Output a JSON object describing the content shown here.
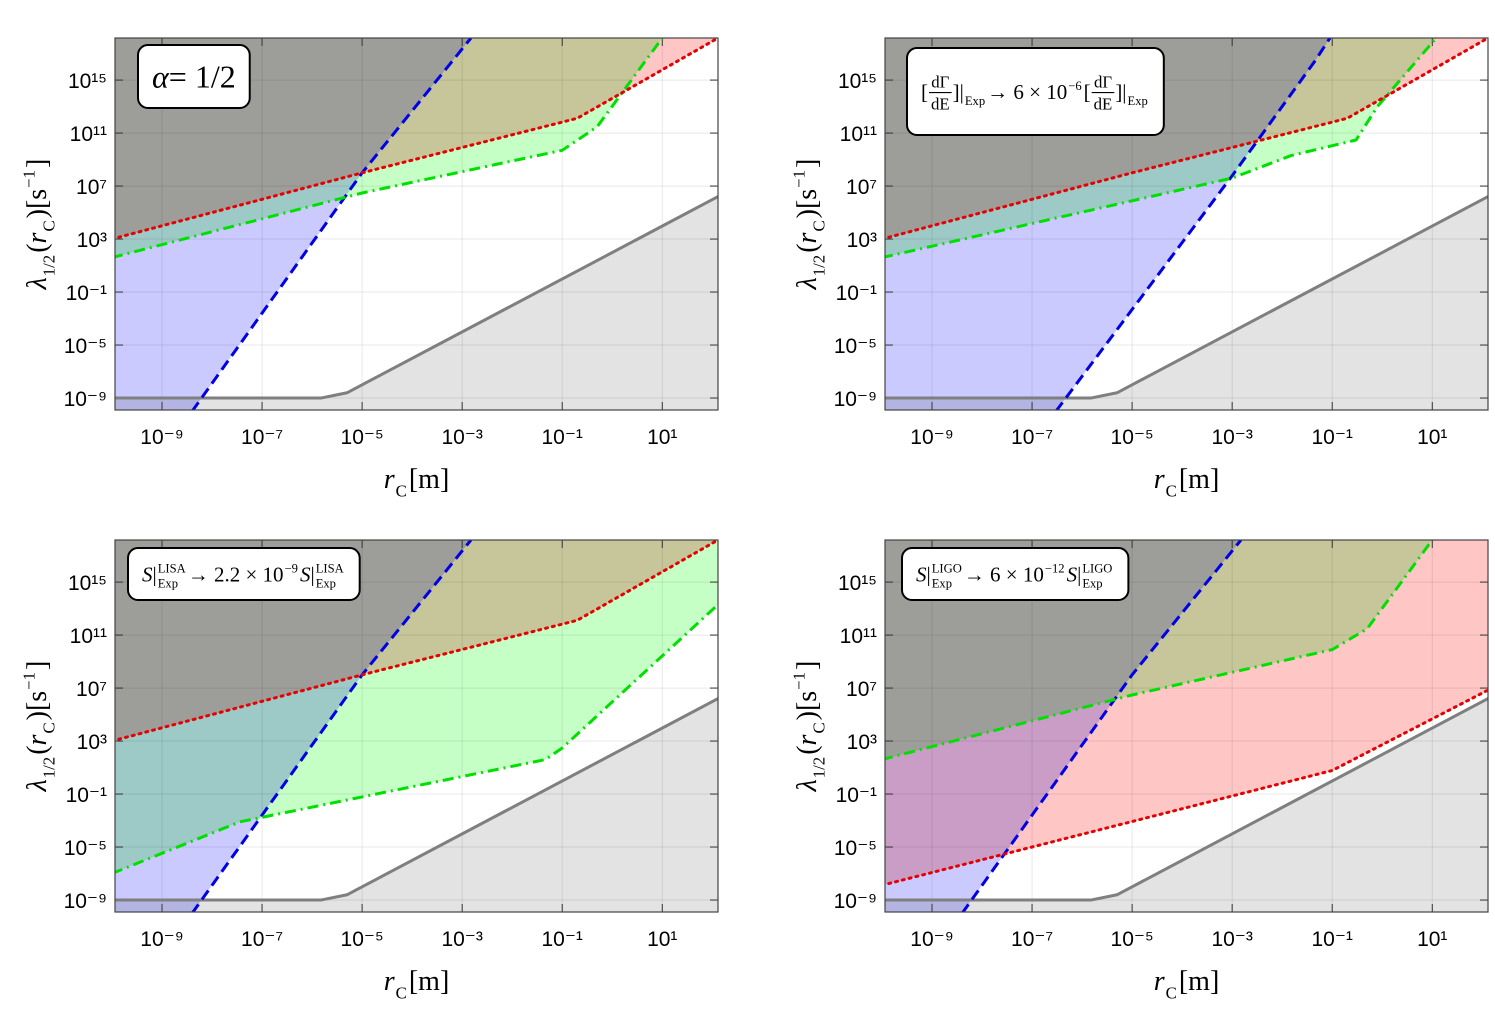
{
  "chart_data": [
    {
      "type": "line",
      "xscale": "log",
      "yscale": "log",
      "grid": true,
      "xlabel": [
        {
          "text": "r",
          "italic": true,
          "sub": "C"
        },
        {
          "text": "[m]"
        }
      ],
      "ylabel": [
        {
          "text": "λ",
          "italic": true,
          "sub": "1/2"
        },
        {
          "text": "("
        },
        {
          "text": "r",
          "italic": true,
          "sub": "C"
        },
        {
          "text": ")[s",
          "sup": "−1"
        },
        {
          "text": "]"
        }
      ],
      "annotation": [
        {
          "text": "α",
          "italic": true
        },
        {
          "text": " = 1/2"
        }
      ],
      "xlim": [
        1.15e-10,
        130
      ],
      "ylim": [
        1.25e-10,
        1.5e+18
      ],
      "xticks": [
        {
          "value": 1e-09,
          "label": "10⁻⁹"
        },
        {
          "value": 1e-07,
          "label": "10⁻⁷"
        },
        {
          "value": 1e-05,
          "label": "10⁻⁵"
        },
        {
          "value": 0.001,
          "label": "10⁻³"
        },
        {
          "value": 0.1,
          "label": "10⁻¹"
        },
        {
          "value": 10,
          "label": "10¹"
        }
      ],
      "yticks": [
        {
          "value": 1e-09,
          "label": "10⁻⁹"
        },
        {
          "value": 1e-05,
          "label": "10⁻⁵"
        },
        {
          "value": 0.1,
          "label": "10⁻¹"
        },
        {
          "value": 1000,
          "label": "10³"
        },
        {
          "value": 10000000.0,
          "label": "10⁷"
        },
        {
          "value": 100000000000.0,
          "label": "10¹¹"
        },
        {
          "value": 1000000000000000.0,
          "label": "10¹⁵"
        }
      ],
      "series": [
        {
          "color": "#7f7f7f",
          "style": "solid",
          "fill": "below",
          "fill_color": "#e3e3e3",
          "x": [
            1e-10,
            1.5e-06,
            5e-06,
            1e-05,
            130
          ],
          "values": [
            1e-09,
            1e-09,
            2.5e-09,
            1e-08,
            1600000.0
          ]
        },
        {
          "color": "#0000e6",
          "style": "dashed",
          "fill": "left",
          "fill_color": "#cacaff",
          "x": [
            4e-09,
            1e-05,
            0.0015
          ],
          "values": [
            1e-10,
            100000000.0,
            1.5e+18
          ]
        },
        {
          "color": "#00e000",
          "style": "dashdot",
          "fill": "above",
          "fill_color": "#c6ffc6",
          "x": [
            1e-10,
            1e-05,
            0.1,
            0.5,
            10
          ],
          "values": [
            40,
            3000000.0,
            5000000000.0,
            300000000000.0,
            1.5e+18
          ]
        },
        {
          "color": "#e60000",
          "style": "dotted",
          "fill": "above",
          "fill_color": "#ffc6c6",
          "x": [
            1e-10,
            1e-05,
            0.2,
            130
          ],
          "values": [
            1000,
            100000000.0,
            1300000000000.0,
            1.5e+18
          ]
        }
      ]
    },
    {
      "type": "line",
      "xscale": "log",
      "yscale": "log",
      "grid": true,
      "xlabel": [
        {
          "text": "r",
          "italic": true,
          "sub": "C"
        },
        {
          "text": "[m]"
        }
      ],
      "ylabel": [
        {
          "text": "λ",
          "italic": true,
          "sub": "1/2"
        },
        {
          "text": "("
        },
        {
          "text": "r",
          "italic": true,
          "sub": "C"
        },
        {
          "text": ")[s",
          "sup": "−1"
        },
        {
          "text": "]"
        }
      ],
      "annotation": [
        {
          "text": "["
        },
        {
          "num": "dΓ",
          "den": "dE"
        },
        {
          "text": "]|",
          "sub": "Exp"
        },
        {
          "text": " → 6 × 10",
          "sup": "−6"
        },
        {
          "text": " ["
        },
        {
          "num": "dΓ",
          "den": "dE"
        },
        {
          "text": "]|",
          "sub": "Exp"
        }
      ],
      "xlim": [
        1.15e-10,
        130
      ],
      "ylim": [
        1.25e-10,
        1.5e+18
      ],
      "xticks": [
        {
          "value": 1e-09,
          "label": "10⁻⁹"
        },
        {
          "value": 1e-07,
          "label": "10⁻⁷"
        },
        {
          "value": 1e-05,
          "label": "10⁻⁵"
        },
        {
          "value": 0.001,
          "label": "10⁻³"
        },
        {
          "value": 0.1,
          "label": "10⁻¹"
        },
        {
          "value": 10,
          "label": "10¹"
        }
      ],
      "yticks": [
        {
          "value": 1e-09,
          "label": "10⁻⁹"
        },
        {
          "value": 1e-05,
          "label": "10⁻⁵"
        },
        {
          "value": 0.1,
          "label": "10⁻¹"
        },
        {
          "value": 1000,
          "label": "10³"
        },
        {
          "value": 10000000.0,
          "label": "10⁷"
        },
        {
          "value": 100000000000.0,
          "label": "10¹¹"
        },
        {
          "value": 1000000000000000.0,
          "label": "10¹⁵"
        }
      ],
      "series": [
        {
          "color": "#7f7f7f",
          "style": "solid",
          "fill": "below",
          "fill_color": "#e3e3e3",
          "x": [
            1e-10,
            1.5e-06,
            5e-06,
            1e-05,
            130
          ],
          "values": [
            1e-09,
            1e-09,
            2.5e-09,
            1e-08,
            1600000.0
          ]
        },
        {
          "color": "#0000e6",
          "style": "dashed",
          "fill": "left",
          "fill_color": "#cacaff",
          "x": [
            3e-07,
            0.001,
            0.046,
            0.09
          ],
          "values": [
            1e-10,
            60000000.0,
            3e+16,
            1.5e+18
          ]
        },
        {
          "color": "#00e000",
          "style": "dashdot",
          "fill": "above",
          "fill_color": "#c6ffc6",
          "x": [
            1e-10,
            0.001,
            0.015,
            0.3,
            0.8,
            12
          ],
          "values": [
            40,
            40000000.0,
            2000000000.0,
            30000000000.0,
            10000000000000.0,
            1.5e+18
          ]
        },
        {
          "color": "#e60000",
          "style": "dotted",
          "fill": "above",
          "fill_color": "#ffc6c6",
          "x": [
            1e-10,
            1e-05,
            0.2,
            130
          ],
          "values": [
            1000,
            100000000.0,
            1300000000000.0,
            1.5e+18
          ]
        }
      ]
    },
    {
      "type": "line",
      "xscale": "log",
      "yscale": "log",
      "grid": true,
      "xlabel": [
        {
          "text": "r",
          "italic": true,
          "sub": "C"
        },
        {
          "text": "[m]"
        }
      ],
      "ylabel": [
        {
          "text": "λ",
          "italic": true,
          "sub": "1/2"
        },
        {
          "text": "("
        },
        {
          "text": "r",
          "italic": true,
          "sub": "C"
        },
        {
          "text": ")[s",
          "sup": "−1"
        },
        {
          "text": "]"
        }
      ],
      "annotation": [
        {
          "text": "S",
          "italic": true
        },
        {
          "text": "|",
          "sub": "Exp",
          "sup": "LISA"
        },
        {
          "text": " → 2.2 × 10",
          "sup": "−9"
        },
        {
          "text": "S",
          "italic": true
        },
        {
          "text": "|",
          "sub": "Exp",
          "sup": "LISA"
        }
      ],
      "xlim": [
        1.15e-10,
        130
      ],
      "ylim": [
        1.25e-10,
        1.5e+18
      ],
      "xticks": [
        {
          "value": 1e-09,
          "label": "10⁻⁹"
        },
        {
          "value": 1e-07,
          "label": "10⁻⁷"
        },
        {
          "value": 1e-05,
          "label": "10⁻⁵"
        },
        {
          "value": 0.001,
          "label": "10⁻³"
        },
        {
          "value": 0.1,
          "label": "10⁻¹"
        },
        {
          "value": 10,
          "label": "10¹"
        }
      ],
      "yticks": [
        {
          "value": 1e-09,
          "label": "10⁻⁹"
        },
        {
          "value": 1e-05,
          "label": "10⁻⁵"
        },
        {
          "value": 0.1,
          "label": "10⁻¹"
        },
        {
          "value": 1000,
          "label": "10³"
        },
        {
          "value": 10000000.0,
          "label": "10⁷"
        },
        {
          "value": 100000000000.0,
          "label": "10¹¹"
        },
        {
          "value": 1000000000000000.0,
          "label": "10¹⁵"
        }
      ],
      "series": [
        {
          "color": "#7f7f7f",
          "style": "solid",
          "fill": "below",
          "fill_color": "#e3e3e3",
          "x": [
            1e-10,
            1.5e-06,
            5e-06,
            1e-05,
            130
          ],
          "values": [
            1e-09,
            1e-09,
            2.5e-09,
            1e-08,
            1600000.0
          ]
        },
        {
          "color": "#0000e6",
          "style": "dashed",
          "fill": "left",
          "fill_color": "#cacaff",
          "x": [
            4e-09,
            1e-05,
            0.0015
          ],
          "values": [
            1e-10,
            100000000.0,
            1.5e+18
          ]
        },
        {
          "color": "#00e000",
          "style": "dashdot",
          "fill": "above",
          "fill_color": "#c6ffc6",
          "x": [
            1e-10,
            3.6e-08,
            0.046,
            0.1,
            130
          ],
          "values": [
            1e-07,
            0.0008,
            40,
            300,
            20000000000000.0
          ]
        },
        {
          "color": "#e60000",
          "style": "dotted",
          "fill": "above",
          "fill_color": "#ffc6c6",
          "x": [
            1e-10,
            1e-05,
            0.2,
            130
          ],
          "values": [
            1000,
            100000000.0,
            1300000000000.0,
            1.5e+18
          ]
        }
      ]
    },
    {
      "type": "line",
      "xscale": "log",
      "yscale": "log",
      "grid": true,
      "xlabel": [
        {
          "text": "r",
          "italic": true,
          "sub": "C"
        },
        {
          "text": "[m]"
        }
      ],
      "ylabel": [
        {
          "text": "λ",
          "italic": true,
          "sub": "1/2"
        },
        {
          "text": "("
        },
        {
          "text": "r",
          "italic": true,
          "sub": "C"
        },
        {
          "text": ")[s",
          "sup": "−1"
        },
        {
          "text": "]"
        }
      ],
      "annotation": [
        {
          "text": "S",
          "italic": true
        },
        {
          "text": "|",
          "sub": "Exp",
          "sup": "LIGO"
        },
        {
          "text": " → 6 × 10",
          "sup": "−12"
        },
        {
          "text": "S",
          "italic": true
        },
        {
          "text": "|",
          "sub": "Exp",
          "sup": "LIGO"
        }
      ],
      "xlim": [
        1.15e-10,
        130
      ],
      "ylim": [
        1.25e-10,
        1.5e+18
      ],
      "xticks": [
        {
          "value": 1e-09,
          "label": "10⁻⁹"
        },
        {
          "value": 1e-07,
          "label": "10⁻⁷"
        },
        {
          "value": 1e-05,
          "label": "10⁻⁵"
        },
        {
          "value": 0.001,
          "label": "10⁻³"
        },
        {
          "value": 0.1,
          "label": "10⁻¹"
        },
        {
          "value": 10,
          "label": "10¹"
        }
      ],
      "yticks": [
        {
          "value": 1e-09,
          "label": "10⁻⁹"
        },
        {
          "value": 1e-05,
          "label": "10⁻⁵"
        },
        {
          "value": 0.1,
          "label": "10⁻¹"
        },
        {
          "value": 1000,
          "label": "10³"
        },
        {
          "value": 10000000.0,
          "label": "10⁷"
        },
        {
          "value": 100000000000.0,
          "label": "10¹¹"
        },
        {
          "value": 1000000000000000.0,
          "label": "10¹⁵"
        }
      ],
      "series": [
        {
          "color": "#7f7f7f",
          "style": "solid",
          "fill": "below",
          "fill_color": "#e3e3e3",
          "x": [
            1e-10,
            1.5e-06,
            5e-06,
            1e-05,
            130
          ],
          "values": [
            1e-09,
            1e-09,
            2.5e-09,
            1e-08,
            1600000.0
          ]
        },
        {
          "color": "#0000e6",
          "style": "dashed",
          "fill": "left",
          "fill_color": "#cacaff",
          "x": [
            4e-09,
            1e-05,
            0.0015
          ],
          "values": [
            1e-10,
            100000000.0,
            1.5e+18
          ]
        },
        {
          "color": "#00e000",
          "style": "dashdot",
          "fill": "above",
          "fill_color": "#c6ffc6",
          "x": [
            1e-10,
            1e-05,
            0.1,
            0.5,
            10
          ],
          "values": [
            40,
            3000000.0,
            8000000000.0,
            300000000000.0,
            1.5e+18
          ]
        },
        {
          "color": "#e60000",
          "style": "dotted",
          "fill": "above",
          "fill_color": "#ffc6c6",
          "x": [
            1e-10,
            0.1,
            130
          ],
          "values": [
            1.3e-08,
            6,
            7000000.0
          ]
        }
      ]
    }
  ]
}
